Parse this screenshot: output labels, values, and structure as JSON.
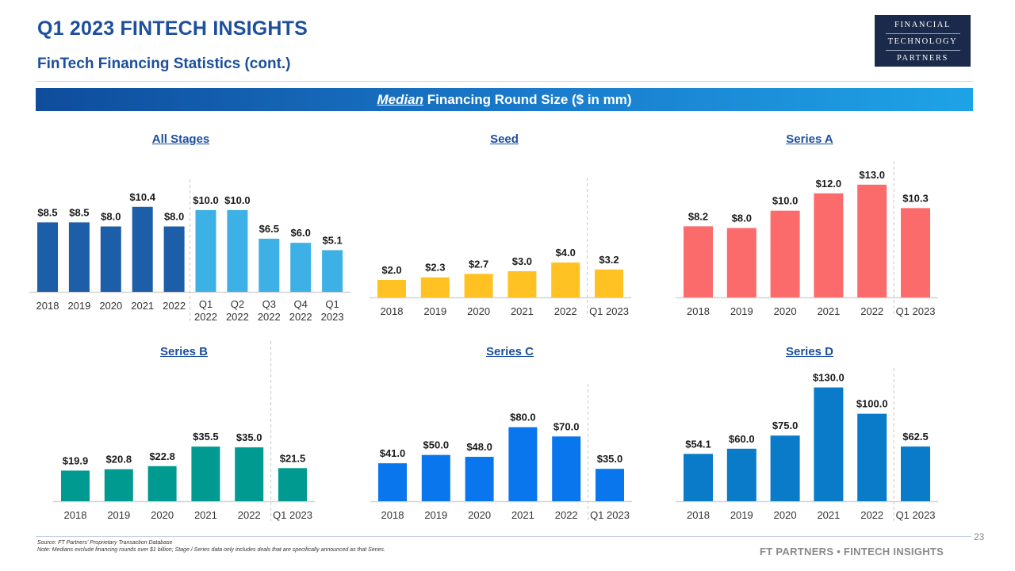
{
  "header": {
    "title": "Q1 2023 FINTECH INSIGHTS",
    "subtitle": "FinTech Financing Statistics (cont.)",
    "logo_lines": [
      "FINANCIAL",
      "TECHNOLOGY",
      "PARTNERS"
    ]
  },
  "band": {
    "emphasis": "Median",
    "rest": " Financing Round Size ($ in mm)"
  },
  "colors": {
    "brand_navy": "#1c4f9c",
    "all_stages_annual": "#1d5ea8",
    "all_stages_quarterly": "#3db1e6",
    "seed": "#ffc222",
    "series_a": "#fc6b6b",
    "series_b": "#009a91",
    "series_c": "#0a76ee",
    "series_d": "#0a7bc8"
  },
  "chart_data": [
    {
      "type": "bar",
      "title": "All Stages",
      "categories": [
        "2018",
        "2019",
        "2020",
        "2021",
        "2022",
        "Q1 2022",
        "Q2 2022",
        "Q3 2022",
        "Q4 2022",
        "Q1 2023"
      ],
      "values": [
        8.5,
        8.5,
        8.0,
        10.4,
        8.0,
        10.0,
        10.0,
        6.5,
        6.0,
        5.1
      ],
      "labels": [
        "$8.5",
        "$8.5",
        "$8.0",
        "$10.4",
        "$8.0",
        "$10.0",
        "$10.0",
        "$6.5",
        "$6.0",
        "$5.1"
      ],
      "divider_after": 5,
      "ylim": [
        0,
        13
      ]
    },
    {
      "type": "bar",
      "title": "Seed",
      "categories": [
        "2018",
        "2019",
        "2020",
        "2021",
        "2022",
        "Q1 2023"
      ],
      "values": [
        2.0,
        2.3,
        2.7,
        3.0,
        4.0,
        3.2
      ],
      "labels": [
        "$2.0",
        "$2.3",
        "$2.7",
        "$3.0",
        "$4.0",
        "$3.2"
      ],
      "divider_after": 5,
      "ylim": [
        0,
        13
      ]
    },
    {
      "type": "bar",
      "title": "Series A",
      "categories": [
        "2018",
        "2019",
        "2020",
        "2021",
        "2022",
        "Q1 2023"
      ],
      "values": [
        8.2,
        8.0,
        10.0,
        12.0,
        13.0,
        10.3
      ],
      "labels": [
        "$8.2",
        "$8.0",
        "$10.0",
        "$12.0",
        "$13.0",
        "$10.3"
      ],
      "divider_after": 5,
      "ylim": [
        0,
        15
      ]
    },
    {
      "type": "bar",
      "title": "Series B",
      "categories": [
        "2018",
        "2019",
        "2020",
        "2021",
        "2022",
        "Q1 2023"
      ],
      "values": [
        19.9,
        20.8,
        22.8,
        35.5,
        35.0,
        21.5
      ],
      "labels": [
        "$19.9",
        "$20.8",
        "$22.8",
        "$35.5",
        "$35.0",
        "$21.5"
      ],
      "divider_after": 5,
      "ylim": [
        0,
        100
      ]
    },
    {
      "type": "bar",
      "title": "Series C",
      "categories": [
        "2018",
        "2019",
        "2020",
        "2021",
        "2022",
        "Q1 2023"
      ],
      "values": [
        41.0,
        50.0,
        48.0,
        80.0,
        70.0,
        35.0
      ],
      "labels": [
        "$41.0",
        "$50.0",
        "$48.0",
        "$80.0",
        "$70.0",
        "$35.0"
      ],
      "divider_after": 5,
      "ylim": [
        0,
        120
      ]
    },
    {
      "type": "bar",
      "title": "Series D",
      "categories": [
        "2018",
        "2019",
        "2020",
        "2021",
        "2022",
        "Q1 2023"
      ],
      "values": [
        54.1,
        60.0,
        75.0,
        130.0,
        100.0,
        62.5
      ],
      "labels": [
        "$54.1",
        "$60.0",
        "$75.0",
        "$130.0",
        "$100.0",
        "$62.5"
      ],
      "divider_after": 5,
      "ylim": [
        0,
        145
      ]
    }
  ],
  "footer": {
    "source": "Source: FT Partners' Proprietary Transaction Database",
    "note": "Note: Medians exclude financing rounds over $1 billion; Stage / Series data only includes deals that are specifically announced as that Series.",
    "page_number": "23",
    "brand": "FT PARTNERS • FINTECH INSIGHTS"
  }
}
